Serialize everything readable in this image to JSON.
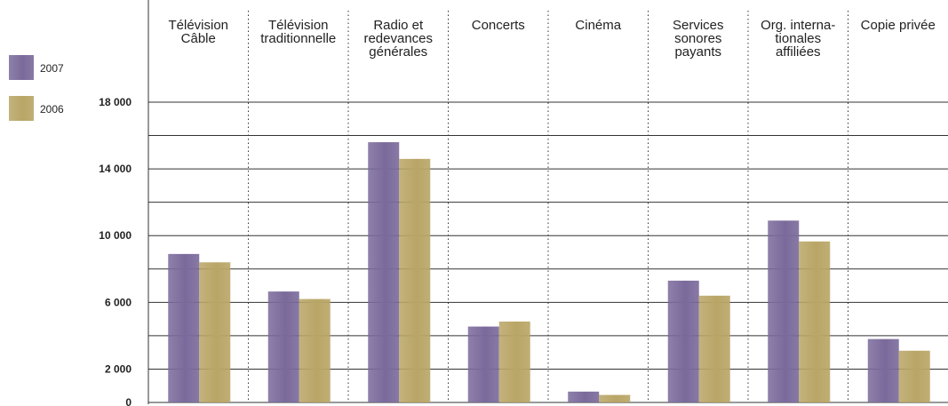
{
  "chart_data": {
    "type": "bar",
    "categories": [
      [
        "Télévision",
        "Câble"
      ],
      [
        "Télévision",
        "traditionnelle"
      ],
      [
        "Radio et",
        "redevances",
        "générales"
      ],
      [
        "Concerts"
      ],
      [
        "Cinéma"
      ],
      [
        "Services",
        "sonores",
        "payants"
      ],
      [
        "Org. interna-",
        "tionales",
        "affiliées"
      ],
      [
        "Copie privée"
      ]
    ],
    "series": [
      {
        "name": "2007",
        "color": "#7a6a9b",
        "values": [
          8900,
          6650,
          15600,
          4550,
          650,
          7300,
          10900,
          3800
        ]
      },
      {
        "name": "2006",
        "color": "#b9a566",
        "values": [
          8400,
          6200,
          14600,
          4850,
          450,
          6400,
          9650,
          3100
        ]
      }
    ],
    "yticks": [
      {
        "value": 0,
        "label": "0"
      },
      {
        "value": 2000,
        "label": "2 000"
      },
      {
        "value": 6000,
        "label": "6 000"
      },
      {
        "value": 10000,
        "label": "10 000"
      },
      {
        "value": 14000,
        "label": "14 000"
      },
      {
        "value": 18000,
        "label": "18 000"
      }
    ],
    "gridlines": [
      2000,
      4000,
      6000,
      8000,
      10000,
      12000,
      14000,
      16000,
      18000
    ],
    "ylim": [
      0,
      18000
    ],
    "grid": true,
    "legend_position": "left",
    "title": "",
    "xlabel": "",
    "ylabel": ""
  }
}
